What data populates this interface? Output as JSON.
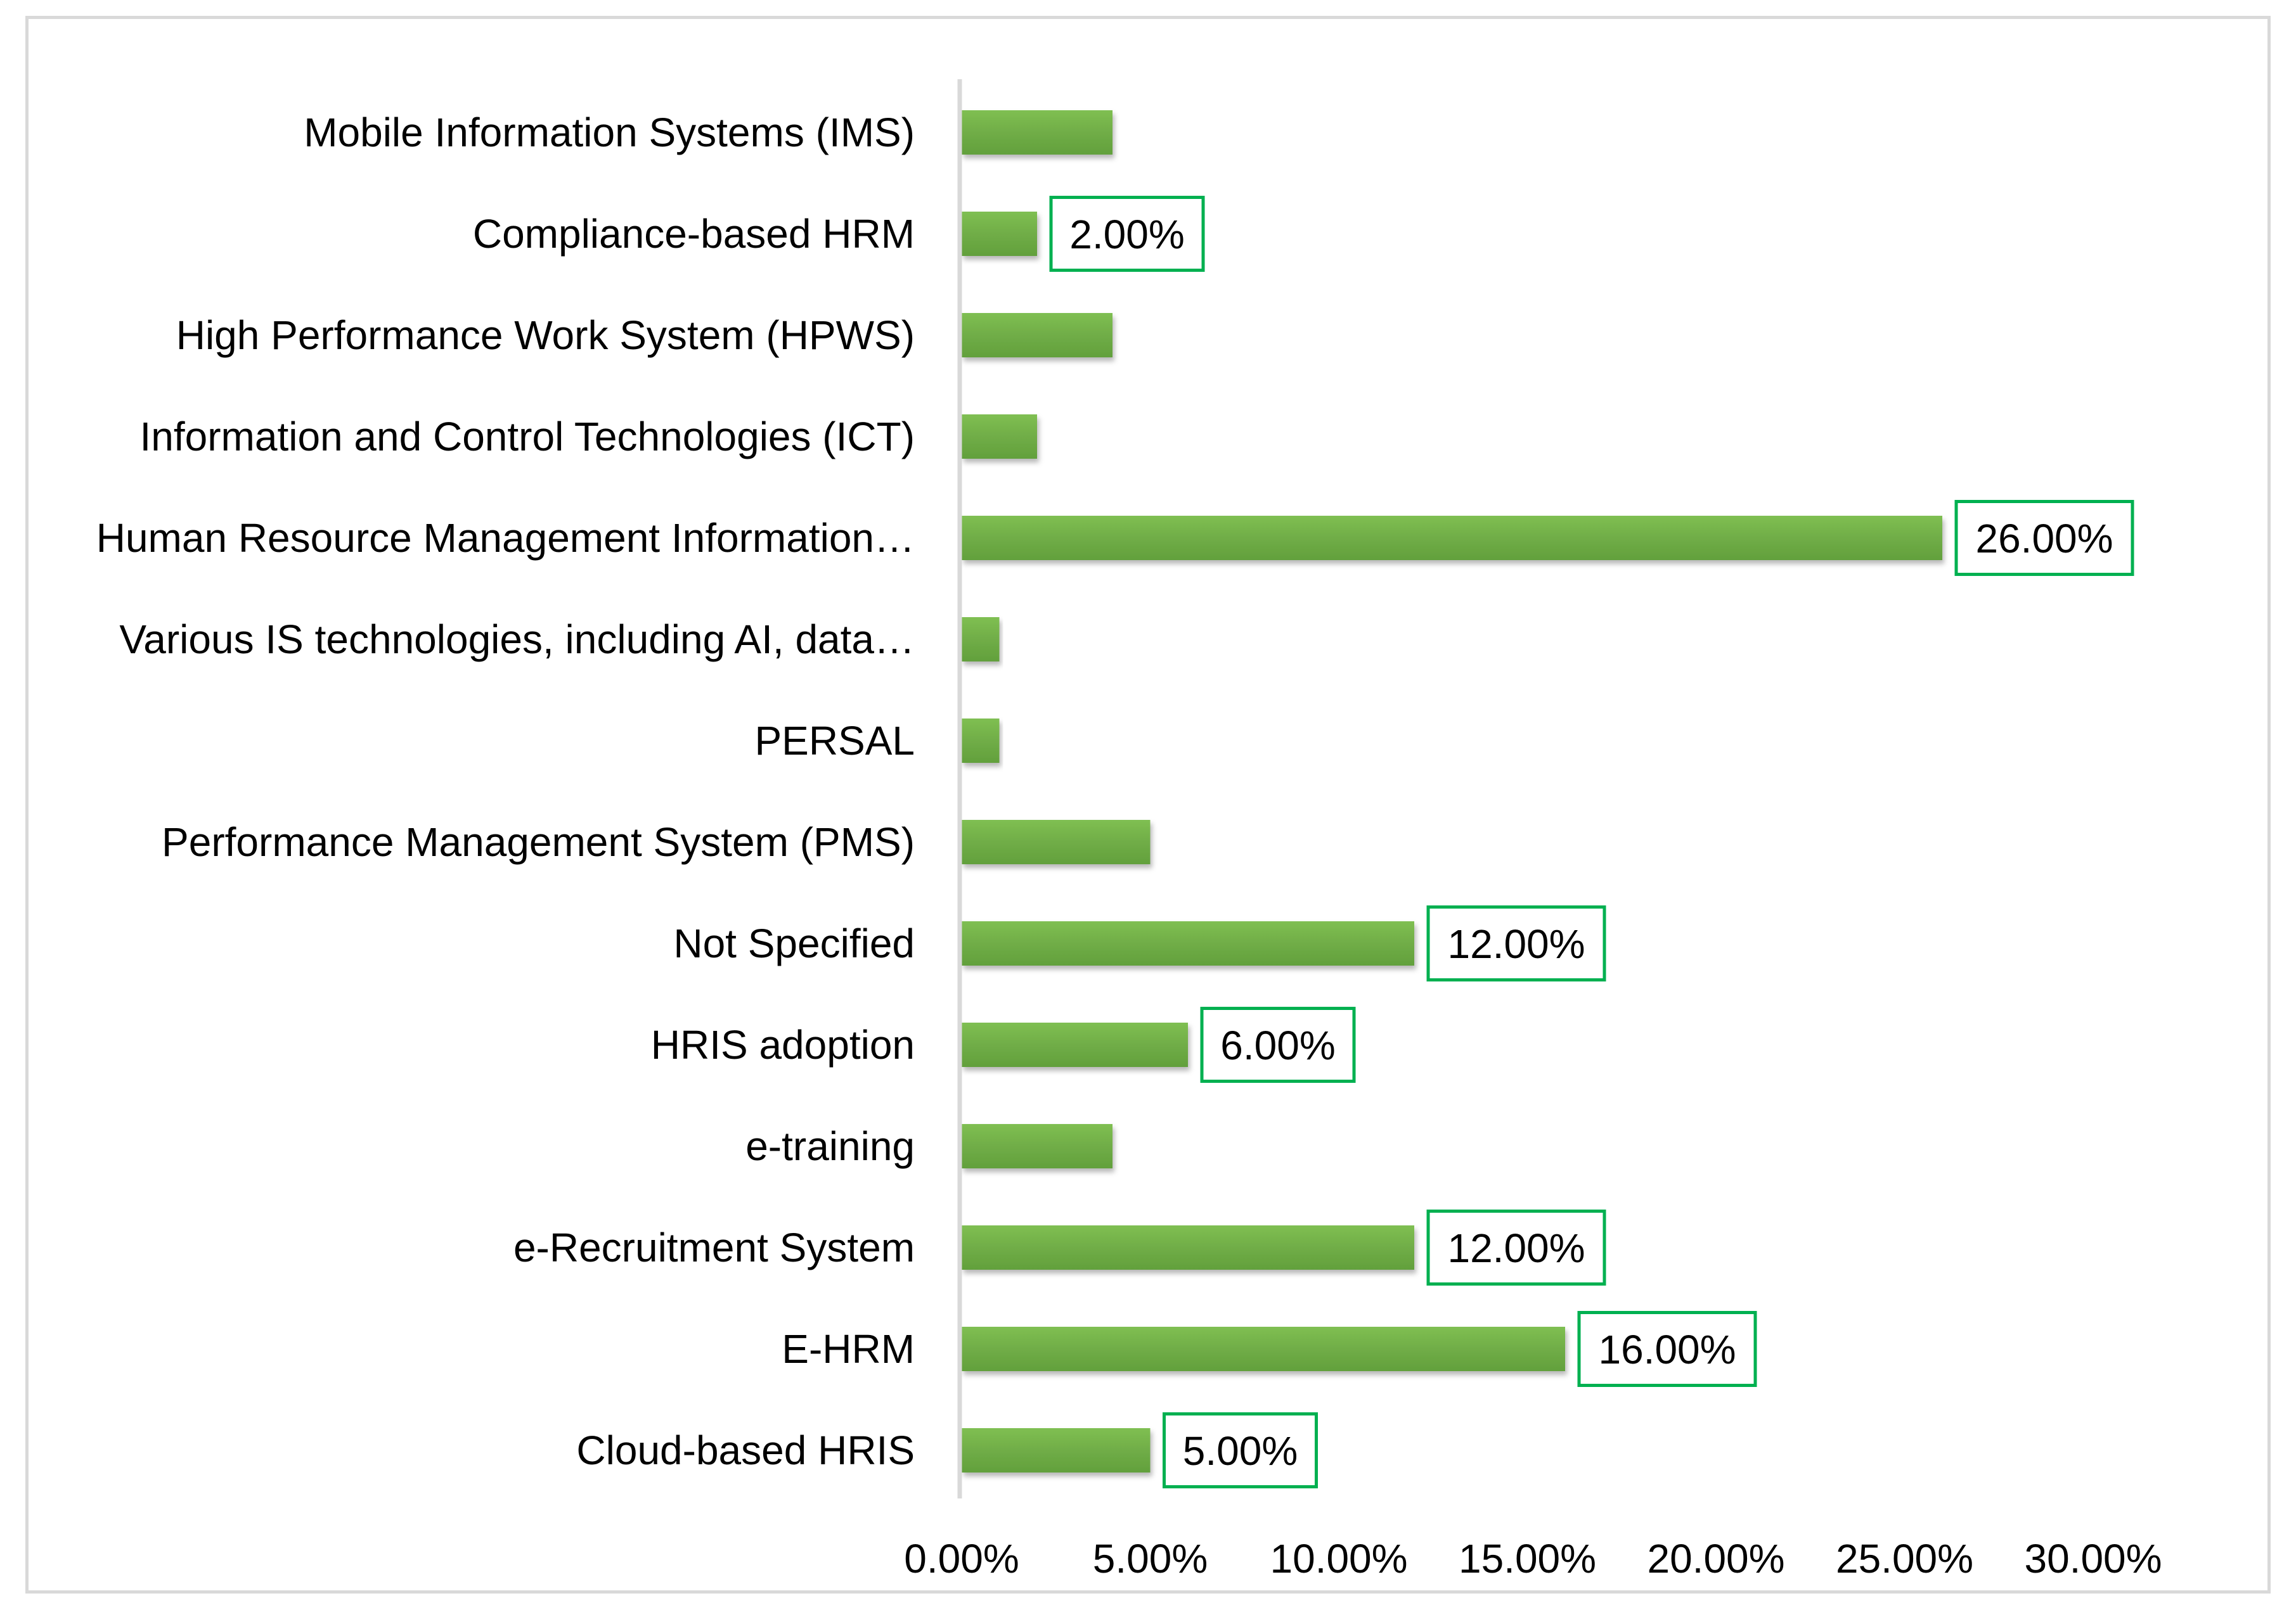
{
  "chart_data": {
    "type": "bar",
    "orientation": "horizontal",
    "title": "",
    "xlabel": "",
    "ylabel": "",
    "xlim": [
      0,
      30
    ],
    "x_ticks": [
      "0.00%",
      "5.00%",
      "10.00%",
      "15.00%",
      "20.00%",
      "25.00%",
      "30.00%"
    ],
    "x_tick_values": [
      0,
      5,
      10,
      15,
      20,
      25,
      30
    ],
    "grid": false,
    "legend": "none",
    "categories": [
      "Mobile Information Systems (IMS)",
      "Compliance-based HRM",
      "High Performance Work System (HPWS)",
      "Information and Control Technologies (ICT)",
      "Human Resource Management Information…",
      "Various IS technologies, including AI, data…",
      "PERSAL",
      "Performance Management System (PMS)",
      "Not Specified",
      "HRIS adoption",
      "e-training",
      "e-Recruitment System",
      "E-HRM",
      "Cloud-based HRIS"
    ],
    "values": [
      4,
      2,
      4,
      2,
      26,
      1,
      1,
      5,
      12,
      6,
      4,
      12,
      16,
      5
    ],
    "data_labels": [
      null,
      "2.00%",
      null,
      null,
      "26.00%",
      null,
      null,
      null,
      "12.00%",
      "6.00%",
      null,
      "12.00%",
      "16.00%",
      "5.00%"
    ],
    "colors": {
      "bar": "#70ad47",
      "bar_highlight": "#8fd05e",
      "label_border": "#00b050",
      "axis": "#d9d9d9",
      "frame": "#d9d9d9"
    }
  }
}
